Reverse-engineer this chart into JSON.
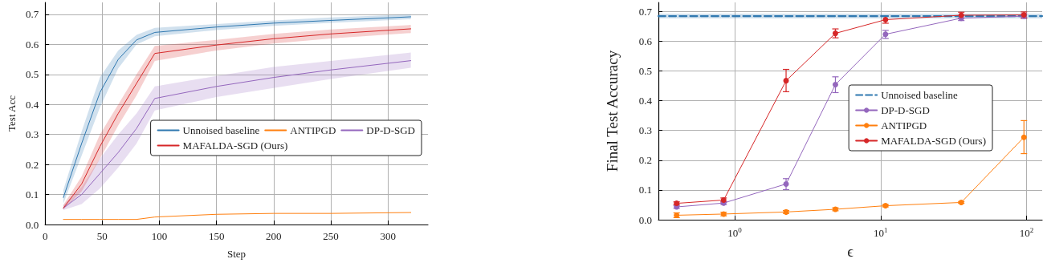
{
  "chart_data": [
    {
      "type": "line",
      "xlabel": "Step",
      "ylabel": "Test Acc",
      "xlim": [
        0,
        335
      ],
      "ylim": [
        0,
        0.74
      ],
      "xticks": [
        0,
        50,
        100,
        150,
        200,
        250,
        300
      ],
      "yticks": [
        {
          "value": 0,
          "label": "0.0"
        },
        0.1,
        0.2,
        0.3,
        0.4,
        0.5,
        0.6,
        0.7
      ],
      "grid": true,
      "legend": "right",
      "marker": "none",
      "x": [
        16,
        32,
        48,
        64,
        80,
        96,
        150,
        200,
        250,
        320
      ],
      "series": [
        {
          "name": "Unnoised baseline",
          "color": "#2f78b0",
          "values": [
            0.09,
            0.27,
            0.44,
            0.55,
            0.615,
            0.64,
            0.658,
            0.671,
            0.68,
            0.692
          ],
          "lower": [
            0.07,
            0.23,
            0.39,
            0.52,
            0.6,
            0.627,
            0.648,
            0.662,
            0.672,
            0.684
          ],
          "upper": [
            0.115,
            0.31,
            0.49,
            0.58,
            0.632,
            0.655,
            0.668,
            0.68,
            0.69,
            0.7
          ]
        },
        {
          "name": "DP-D-SGD",
          "color": "#9467bd",
          "values": [
            0.055,
            0.1,
            0.17,
            0.24,
            0.32,
            0.42,
            0.46,
            0.49,
            0.515,
            0.546
          ],
          "lower": [
            0.048,
            0.068,
            0.12,
            0.19,
            0.27,
            0.38,
            0.425,
            0.455,
            0.485,
            0.522
          ],
          "upper": [
            0.065,
            0.125,
            0.22,
            0.3,
            0.37,
            0.46,
            0.495,
            0.525,
            0.545,
            0.573
          ]
        },
        {
          "name": "ANTIPGD",
          "color": "#ff7f0e",
          "values": [
            0.017,
            0.017,
            0.017,
            0.017,
            0.017,
            0.025,
            0.034,
            0.037,
            0.037,
            0.04
          ]
        },
        {
          "name": "MAFALDA-SGD (Ours)",
          "color": "#d62728",
          "values": [
            0.055,
            0.135,
            0.26,
            0.37,
            0.47,
            0.57,
            0.598,
            0.619,
            0.635,
            0.652
          ],
          "lower": [
            0.05,
            0.11,
            0.22,
            0.33,
            0.43,
            0.545,
            0.58,
            0.603,
            0.62,
            0.638
          ],
          "upper": [
            0.065,
            0.16,
            0.3,
            0.4,
            0.5,
            0.595,
            0.615,
            0.635,
            0.65,
            0.665
          ]
        }
      ]
    },
    {
      "type": "line",
      "xlabel": "ϵ",
      "ylabel": "Final Test Accuracy",
      "log": "x",
      "xlim": [
        0.3,
        128
      ],
      "ylim": [
        0,
        0.73
      ],
      "xticks": [
        {
          "value": 1,
          "label": "10$^{0}$"
        },
        {
          "value": 10,
          "label": "10$^{1}$"
        },
        {
          "value": 100,
          "label": "10$^{2}$"
        }
      ],
      "yticks": [
        {
          "value": 0,
          "label": "0.0"
        },
        0.1,
        0.2,
        0.3,
        0.4,
        0.5,
        0.6,
        0.7
      ],
      "grid": true,
      "legend": "right",
      "marker": "circle",
      "x": [
        0.4,
        0.84,
        2.25,
        4.9,
        10.8,
        35.7,
        96
      ],
      "series": [
        {
          "name": "Unnoised baseline",
          "color": "#2f78b0",
          "marker": "none",
          "line_style": "dashed",
          "x": [
            0.3,
            128
          ],
          "values": [
            0.684,
            0.684
          ],
          "lower": [
            0.676,
            0.676
          ],
          "upper": [
            0.692,
            0.692
          ]
        },
        {
          "name": "DP-D-SGD",
          "color": "#9467bd",
          "values": [
            0.043,
            0.056,
            0.12,
            0.454,
            0.623,
            0.677,
            0.684
          ],
          "errors": [
            0.005,
            0.005,
            [
              0.101,
              0.138
            ],
            [
              0.427,
              0.48
            ],
            [
              0.609,
              0.636
            ],
            0.008,
            0.008
          ]
        },
        {
          "name": "ANTIPGD",
          "color": "#ff7f0e",
          "values": [
            0.015,
            0.019,
            0.026,
            0.035,
            0.047,
            0.058,
            0.277
          ],
          "errors": [
            0.008,
            0.006,
            0.005,
            0.005,
            0.004,
            0.003,
            [
              0.222,
              0.333
            ]
          ]
        },
        {
          "name": "MAFALDA-SGD (Ours)",
          "color": "#d62728",
          "values": [
            0.055,
            0.066,
            0.467,
            0.626,
            0.672,
            0.687,
            0.688
          ],
          "errors": [
            0.005,
            0.007,
            [
              0.43,
              0.505
            ],
            0.015,
            0.012,
            0.01,
            0.01
          ]
        }
      ]
    }
  ]
}
